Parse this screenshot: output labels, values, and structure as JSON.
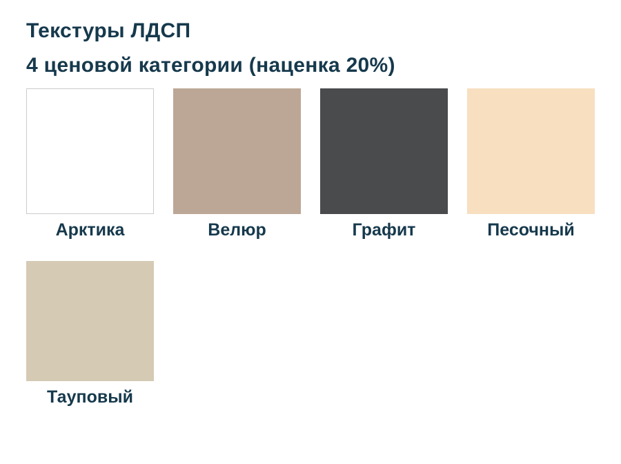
{
  "page": {
    "background": "#FFFFFF",
    "title_color": "#16394C"
  },
  "title": {
    "line1": "Текстуры ЛДСП",
    "line2": "4 ценовой категории (наценка 20%)"
  },
  "swatches": [
    {
      "label": "Арктика",
      "color": "#FFFFFF",
      "border": "#CBCBCB"
    },
    {
      "label": "Велюр",
      "color": "#BCA695"
    },
    {
      "label": "Графит",
      "color": "#494B4C"
    },
    {
      "label": "Песочный",
      "color": "#F7DFC0"
    },
    {
      "label": "Тауповый",
      "color": "#D5CAB4"
    }
  ]
}
